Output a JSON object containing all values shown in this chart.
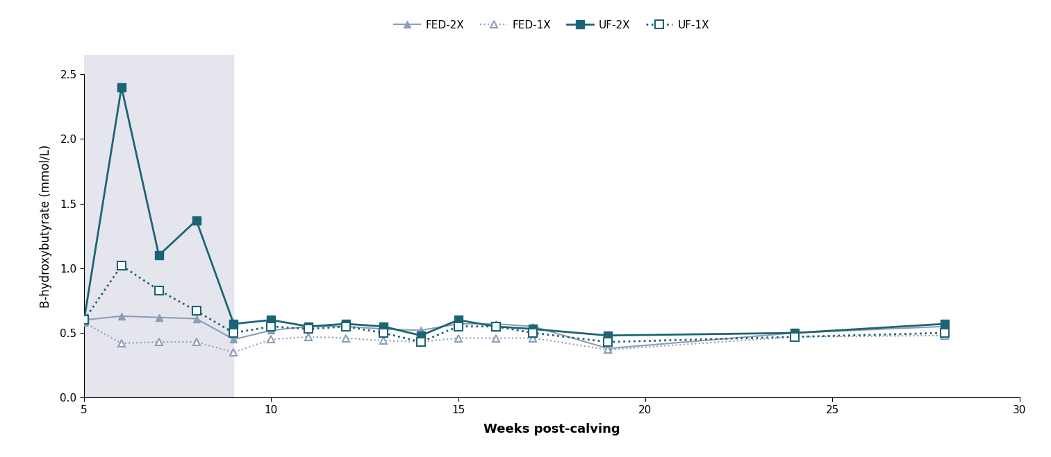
{
  "title": "",
  "xlabel": "Weeks post-calving",
  "ylabel": "B-hydroxybutyrate (mmol/L)",
  "xlim": [
    5,
    30
  ],
  "ylim": [
    0.0,
    2.65
  ],
  "yticks": [
    0.0,
    0.5,
    1.0,
    1.5,
    2.0,
    2.5
  ],
  "xticks": [
    5,
    10,
    15,
    20,
    25,
    30
  ],
  "shade_xmin": 5,
  "shade_xmax": 9,
  "series": {
    "FED-2X": {
      "x": [
        5,
        6,
        7,
        8,
        9,
        10,
        11,
        12,
        13,
        14,
        15,
        16,
        17,
        19,
        24,
        28
      ],
      "y": [
        0.6,
        0.63,
        0.62,
        0.61,
        0.45,
        0.52,
        0.55,
        0.55,
        0.53,
        0.52,
        0.57,
        0.57,
        0.55,
        0.38,
        0.5,
        0.55
      ],
      "color": "#8c9db8",
      "linestyle": "-",
      "marker": "^",
      "marker_filled": true,
      "linewidth": 1.5,
      "markersize": 7,
      "label": "FED-2X"
    },
    "FED-1X": {
      "x": [
        5,
        6,
        7,
        8,
        9,
        10,
        11,
        12,
        13,
        14,
        15,
        16,
        17,
        19,
        24,
        28
      ],
      "y": [
        0.58,
        0.42,
        0.43,
        0.43,
        0.35,
        0.45,
        0.47,
        0.46,
        0.44,
        0.43,
        0.46,
        0.46,
        0.46,
        0.37,
        0.47,
        0.48
      ],
      "color": "#8c9db8",
      "linestyle": ":",
      "marker": "^",
      "marker_filled": false,
      "linewidth": 1.5,
      "markersize": 7,
      "label": "FED-1X"
    },
    "UF-2X": {
      "x": [
        5,
        6,
        7,
        8,
        9,
        10,
        11,
        12,
        13,
        14,
        15,
        16,
        17,
        19,
        24,
        28
      ],
      "y": [
        0.6,
        2.4,
        1.1,
        1.37,
        0.57,
        0.6,
        0.55,
        0.57,
        0.55,
        0.48,
        0.6,
        0.55,
        0.53,
        0.48,
        0.5,
        0.57
      ],
      "color": "#1b6475",
      "linestyle": "-",
      "marker": "s",
      "marker_filled": true,
      "linewidth": 2.0,
      "markersize": 8,
      "label": "UF-2X"
    },
    "UF-1X": {
      "x": [
        5,
        6,
        7,
        8,
        9,
        10,
        11,
        12,
        13,
        14,
        15,
        16,
        17,
        19,
        24,
        28
      ],
      "y": [
        0.6,
        1.02,
        0.83,
        0.67,
        0.5,
        0.55,
        0.53,
        0.55,
        0.5,
        0.43,
        0.55,
        0.55,
        0.5,
        0.43,
        0.47,
        0.5
      ],
      "color": "#1b6475",
      "linestyle": ":",
      "marker": "s",
      "marker_filled": false,
      "linewidth": 2.0,
      "markersize": 8,
      "label": "UF-1X"
    }
  },
  "shade_color": "#e5e5ed",
  "background_color": "#ffffff",
  "legend_order": [
    "FED-2X",
    "FED-1X",
    "UF-2X",
    "UF-1X"
  ]
}
